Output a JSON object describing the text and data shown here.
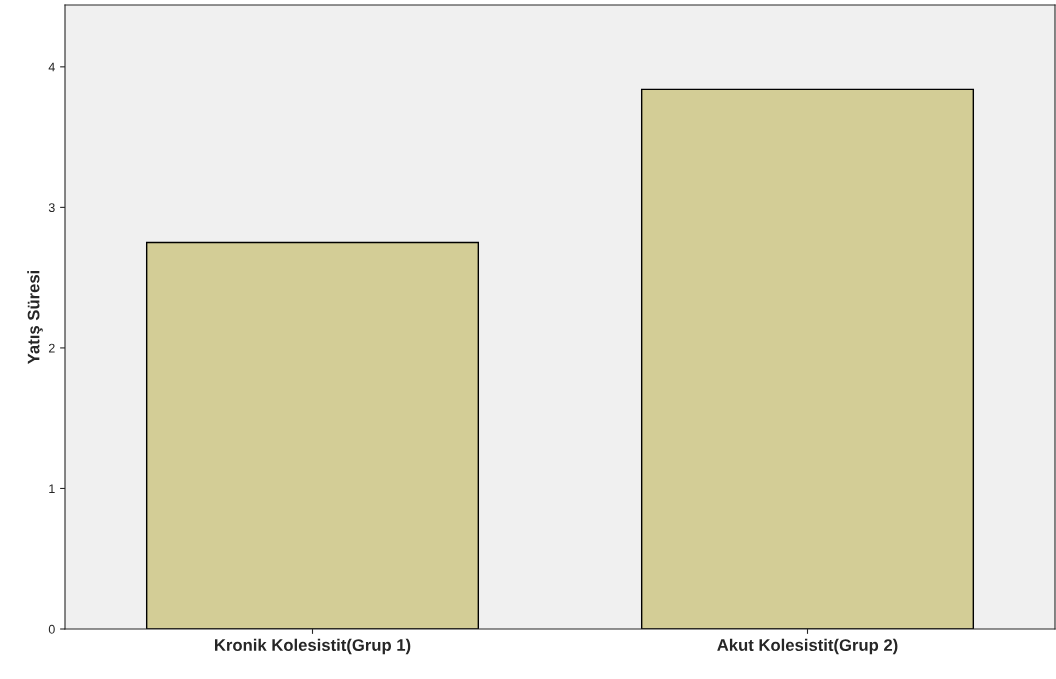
{
  "chart_data": {
    "type": "bar",
    "ylabel": "Yatış Süresi",
    "categories": [
      "Kronik Kolesistit(Grup 1)",
      "Akut Kolesistit(Grup 2)"
    ],
    "values": [
      2.75,
      3.84
    ],
    "color": "#d3cd96",
    "ylim": [
      0,
      4.44
    ],
    "yticks": [
      0,
      1,
      2,
      3,
      4
    ],
    "grid": false
  }
}
